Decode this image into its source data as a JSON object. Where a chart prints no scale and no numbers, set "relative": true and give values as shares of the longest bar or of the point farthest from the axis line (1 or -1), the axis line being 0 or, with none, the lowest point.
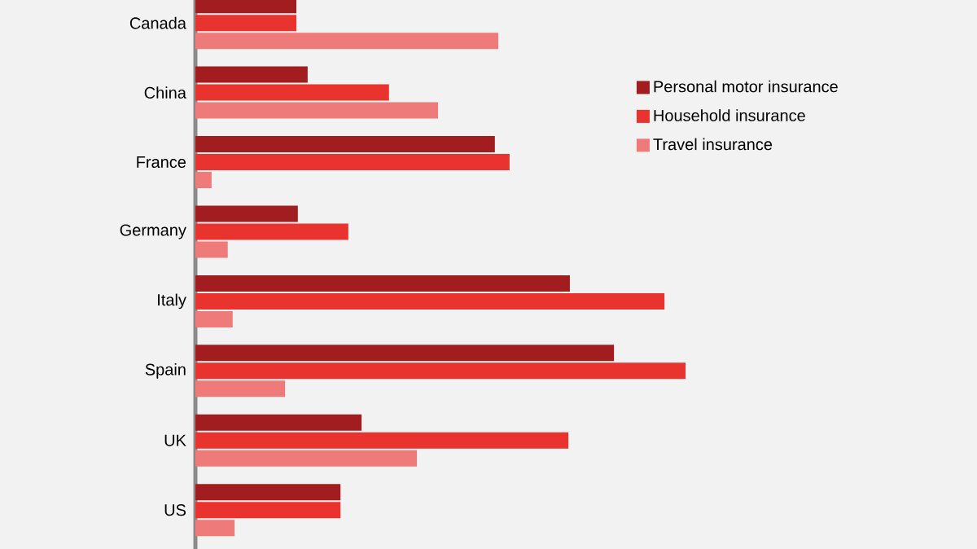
{
  "chart_data": {
    "type": "bar",
    "orientation": "horizontal",
    "relative": true,
    "legend": "right",
    "categories": [
      "Canada",
      "China",
      "France",
      "Germany",
      "Italy",
      "Spain",
      "UK",
      "US"
    ],
    "series": [
      {
        "name": "Personal motor insurance",
        "color": "#a11d1f",
        "values": [
          0.206,
          0.229,
          0.611,
          0.209,
          0.764,
          0.854,
          0.339,
          0.296
        ]
      },
      {
        "name": "Household insurance",
        "color": "#e8332f",
        "values": [
          0.206,
          0.395,
          0.641,
          0.312,
          0.957,
          1,
          0.761,
          0.296
        ]
      },
      {
        "name": "Travel insurance",
        "color": "#ee7a79",
        "values": [
          0.618,
          0.495,
          0.033,
          0.066,
          0.076,
          0.183,
          0.452,
          0.08
        ]
      }
    ]
  }
}
